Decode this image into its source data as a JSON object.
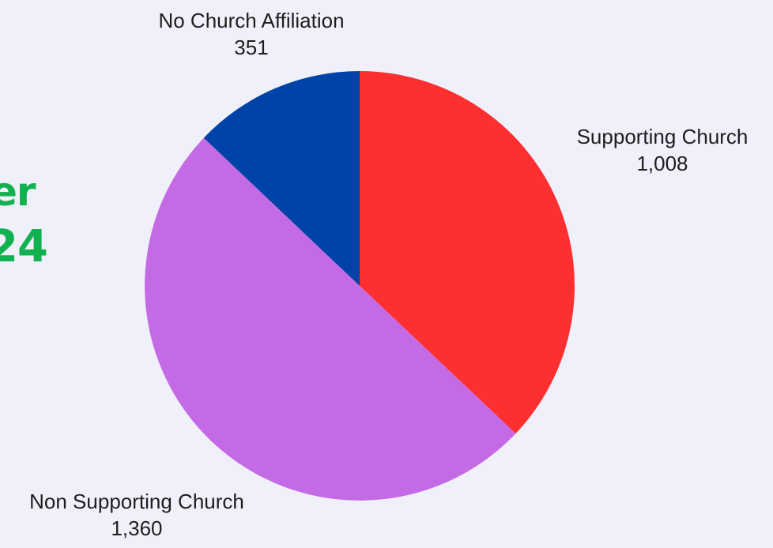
{
  "title_fragments": [
    "er",
    "24"
  ],
  "colors": {
    "background": "#f0f0fa",
    "title": "#12b14f",
    "label_text": "#1d1d1d"
  },
  "chart_data": {
    "type": "pie",
    "slices": [
      {
        "label": "Supporting Church",
        "value": 1008,
        "value_label": "1,008",
        "color": "#fe2f30"
      },
      {
        "label": "Non Supporting Church",
        "value": 1360,
        "value_label": "1,360",
        "color": "#c56ae5"
      },
      {
        "label": "No Church Affiliation",
        "value": 351,
        "value_label": "351",
        "color": "#0043a8"
      }
    ],
    "start_angle": "12 o'clock",
    "direction": "clockwise",
    "legend": "none"
  }
}
